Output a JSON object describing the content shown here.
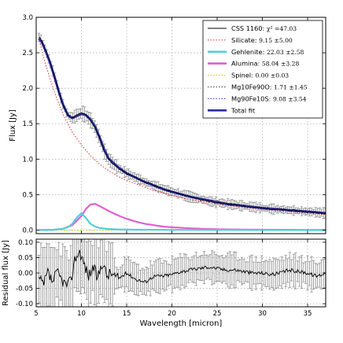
{
  "chart_data": [
    {
      "type": "line",
      "panel": "main",
      "xlabel": "",
      "ylabel": "Flux [Jy]",
      "xlim": [
        5,
        37
      ],
      "ylim": [
        -0.05,
        3.0
      ],
      "xticks": [
        5,
        10,
        15,
        20,
        25,
        30,
        35
      ],
      "yticks": [
        0.0,
        0.5,
        1.0,
        1.5,
        2.0,
        2.5,
        3.0
      ],
      "ytick_labels": [
        "0.0",
        "0.5",
        "1.0",
        "1.5",
        "2.0",
        "2.5",
        "3.0"
      ],
      "grid": true,
      "legend_position": "top-right",
      "legend": [
        {
          "label": "CSS 1160: ",
          "value": "χ² =47.03",
          "color": "#000000",
          "style": "solid"
        },
        {
          "label": "Silicate: ",
          "value": "9.15 ±5.00",
          "color": "#e03030",
          "style": "dotted"
        },
        {
          "label": "Gehlenite: ",
          "value": "22.03 ±2.58",
          "color": "#50d0d8",
          "style": "thick"
        },
        {
          "label": "Alumina: ",
          "value": "58.04 ±3.28",
          "color": "#e060d0",
          "style": "thick"
        },
        {
          "label": "Spinel: ",
          "value": "0.00 ±0.03",
          "color": "#c8c800",
          "style": "dotted"
        },
        {
          "label": "Mg10Fe90O: ",
          "value": "1.71 ±1.45",
          "color": "#404040",
          "style": "dotted"
        },
        {
          "label": "Mg90Fe10S: ",
          "value": "9.08 ±3.54",
          "color": "#3030e0",
          "style": "dotted"
        },
        {
          "label": "Total fit",
          "value": "",
          "color": "#2b2f9e",
          "style": "thick"
        }
      ],
      "series": [
        {
          "name": "CSS 1160",
          "color": "#000000",
          "x": [
            5.3,
            5.6,
            6.0,
            6.5,
            7.0,
            7.5,
            8.0,
            8.5,
            9.0,
            9.5,
            10.0,
            10.5,
            11.0,
            11.5,
            12.0,
            12.5,
            13.0,
            14.0,
            15.0,
            16.0,
            17.0,
            18.0,
            19.0,
            20.0,
            22.0,
            24.0,
            26.0,
            28.0,
            30.0,
            32.0,
            34.0,
            35.0,
            36.0,
            37.0
          ],
          "y": [
            2.72,
            2.68,
            2.55,
            2.38,
            2.18,
            1.95,
            1.75,
            1.62,
            1.58,
            1.62,
            1.65,
            1.62,
            1.55,
            1.45,
            1.3,
            1.12,
            1.0,
            0.88,
            0.8,
            0.74,
            0.68,
            0.63,
            0.58,
            0.54,
            0.47,
            0.41,
            0.37,
            0.34,
            0.31,
            0.29,
            0.27,
            0.26,
            0.25,
            0.24
          ]
        },
        {
          "name": "Total fit",
          "color": "#2b2f9e",
          "x": [
            5.3,
            5.6,
            6.0,
            6.5,
            7.0,
            7.5,
            8.0,
            8.5,
            9.0,
            9.5,
            10.0,
            10.5,
            11.0,
            11.5,
            12.0,
            12.5,
            13.0,
            14.0,
            15.0,
            16.0,
            17.0,
            18.0,
            19.0,
            20.0,
            22.0,
            24.0,
            26.0,
            28.0,
            30.0,
            32.0,
            34.0,
            35.0,
            36.0,
            37.0
          ],
          "y": [
            2.7,
            2.66,
            2.54,
            2.37,
            2.17,
            1.95,
            1.76,
            1.62,
            1.58,
            1.61,
            1.64,
            1.62,
            1.56,
            1.46,
            1.31,
            1.14,
            1.01,
            0.89,
            0.8,
            0.74,
            0.68,
            0.63,
            0.58,
            0.54,
            0.47,
            0.42,
            0.37,
            0.34,
            0.31,
            0.29,
            0.27,
            0.26,
            0.25,
            0.24
          ]
        },
        {
          "name": "Silicate",
          "color": "#e03030",
          "x": [
            5.3,
            6,
            7,
            8,
            9,
            10,
            11,
            12,
            13,
            14,
            15,
            16,
            18,
            20,
            22,
            24,
            26,
            28,
            30,
            32,
            34,
            36,
            37
          ],
          "y": [
            2.7,
            2.35,
            1.95,
            1.62,
            1.38,
            1.2,
            1.05,
            0.93,
            0.84,
            0.76,
            0.7,
            0.65,
            0.56,
            0.49,
            0.43,
            0.39,
            0.35,
            0.32,
            0.29,
            0.27,
            0.25,
            0.23,
            0.22
          ]
        },
        {
          "name": "Gehlenite",
          "color": "#50d0d8",
          "x": [
            5.3,
            7,
            8,
            8.5,
            9,
            9.5,
            10,
            10.5,
            11,
            11.5,
            12,
            13,
            14,
            16,
            20,
            25,
            30,
            37
          ],
          "y": [
            0.0,
            0.005,
            0.02,
            0.04,
            0.09,
            0.18,
            0.24,
            0.17,
            0.09,
            0.05,
            0.03,
            0.015,
            0.01,
            0.005,
            0.003,
            0.002,
            0.001,
            0.0
          ]
        },
        {
          "name": "Alumina",
          "color": "#e060d0",
          "x": [
            5.3,
            7,
            8,
            9,
            10,
            10.5,
            11,
            11.5,
            12,
            13,
            14,
            15,
            16,
            17,
            18,
            19,
            20,
            22,
            24,
            26,
            30,
            37
          ],
          "y": [
            0.0,
            0.005,
            0.02,
            0.07,
            0.2,
            0.3,
            0.36,
            0.37,
            0.34,
            0.27,
            0.21,
            0.16,
            0.12,
            0.09,
            0.07,
            0.05,
            0.04,
            0.025,
            0.015,
            0.01,
            0.005,
            0.002
          ]
        },
        {
          "name": "Spinel",
          "color": "#c8c800",
          "x": [
            5.3,
            37
          ],
          "y": [
            0.0,
            0.0
          ]
        }
      ]
    },
    {
      "type": "line",
      "panel": "residual",
      "xlabel": "Wavelength [micron]",
      "ylabel": "Residual flux [Jy]",
      "xlim": [
        5,
        37
      ],
      "ylim": [
        -0.11,
        0.11
      ],
      "xticks": [
        5,
        10,
        15,
        20,
        25,
        30,
        35
      ],
      "yticks": [
        -0.1,
        -0.05,
        0.0,
        0.05,
        0.1
      ],
      "ytick_labels": [
        "-0.10",
        "-0.05",
        "0.00",
        "0.05",
        "0.10"
      ],
      "grid": true,
      "series": [
        {
          "name": "Residual",
          "color": "#000000",
          "x": [
            5.3,
            5.8,
            6.3,
            6.8,
            7.3,
            7.8,
            8.3,
            8.8,
            9.3,
            9.8,
            10.3,
            10.8,
            11.3,
            11.8,
            12.3,
            12.8,
            13.3,
            14,
            15,
            16,
            17,
            18,
            19,
            20,
            21,
            22,
            23,
            24,
            25,
            26,
            27,
            28,
            29,
            30,
            31,
            32,
            33,
            34,
            35,
            36,
            37
          ],
          "y": [
            -0.02,
            -0.04,
            0.0,
            -0.03,
            0.0,
            -0.02,
            -0.04,
            -0.03,
            0.05,
            0.07,
            0.03,
            -0.01,
            0.02,
            -0.02,
            0.04,
            -0.01,
            0.0,
            -0.02,
            0.0,
            -0.02,
            -0.03,
            -0.01,
            -0.01,
            -0.005,
            0.005,
            0.01,
            0.015,
            0.02,
            0.015,
            0.01,
            0.01,
            0.005,
            0.0,
            0.0,
            -0.005,
            0.0,
            0.01,
            0.005,
            0.0,
            -0.01,
            0.0
          ]
        }
      ]
    }
  ]
}
